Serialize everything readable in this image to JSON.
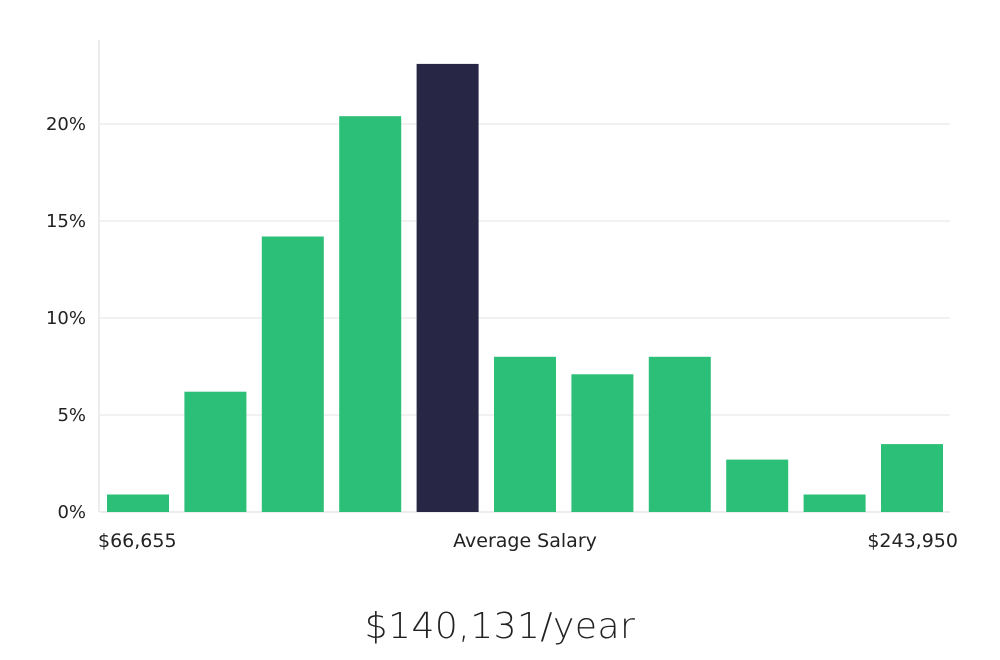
{
  "chart_data": {
    "type": "bar",
    "title": "",
    "xlabel": "",
    "ylabel": "",
    "ylim": [
      0,
      24
    ],
    "yticks": [
      0,
      5,
      10,
      15,
      20
    ],
    "ytick_labels": [
      "0%",
      "5%",
      "10%",
      "15%",
      "20%"
    ],
    "categories": [
      "1",
      "2",
      "3",
      "4",
      "5",
      "6",
      "7",
      "8",
      "9",
      "10",
      "11"
    ],
    "values": [
      0.9,
      6.2,
      14.2,
      20.4,
      23.1,
      8.0,
      7.1,
      8.0,
      2.7,
      0.9,
      3.5
    ],
    "highlight_index": 4,
    "x_axis_labels": {
      "min": "$66,655",
      "center": "Average Salary",
      "max": "$243,950"
    },
    "grid": true,
    "colors": {
      "bar": "#2bbf78",
      "highlight": "#272645",
      "grid": "#e3e3e3",
      "axis": "#d9d9d9"
    }
  },
  "headline": "$140,131/year"
}
